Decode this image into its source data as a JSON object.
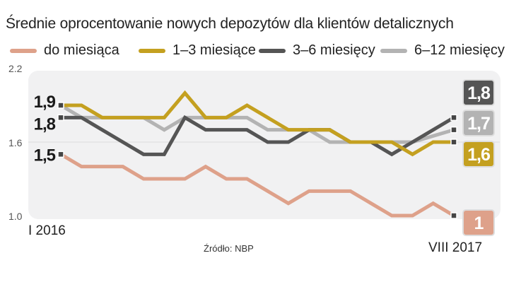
{
  "chart_data": {
    "type": "line",
    "title": "Średnie oprocentowanie nowych depozytów dla klientów detalicznych",
    "source": "Źródło: NBP",
    "x_start_label": "I 2016",
    "x_end_label": "VIII 2017",
    "ylim": [
      1.0,
      2.2
    ],
    "yticks": [
      "2.2",
      "1.6",
      "1.0"
    ],
    "ytick_values": [
      2.2,
      1.6,
      1.0
    ],
    "legend_placement": "top",
    "series": [
      {
        "name": "do miesiąca",
        "color": "#dea18a",
        "start_label": "1,5",
        "end_label": "1",
        "values": [
          1.5,
          1.4,
          1.4,
          1.4,
          1.3,
          1.3,
          1.3,
          1.4,
          1.3,
          1.3,
          1.2,
          1.1,
          1.2,
          1.2,
          1.2,
          1.1,
          1.0,
          1.0,
          1.1,
          1.0
        ]
      },
      {
        "name": "1–3 miesiące",
        "color": "#c4a020",
        "start_label": "1,9",
        "end_label": "1,6",
        "values": [
          1.9,
          1.9,
          1.8,
          1.8,
          1.8,
          1.8,
          2.0,
          1.8,
          1.8,
          1.9,
          1.8,
          1.7,
          1.7,
          1.7,
          1.6,
          1.6,
          1.6,
          1.5,
          1.6,
          1.6
        ]
      },
      {
        "name": "3–6 miesięcy",
        "color": "#555555",
        "start_label": "1,8",
        "end_label": "1,8",
        "values": [
          1.8,
          1.8,
          1.7,
          1.6,
          1.5,
          1.5,
          1.8,
          1.7,
          1.7,
          1.7,
          1.6,
          1.6,
          1.7,
          1.7,
          1.6,
          1.6,
          1.5,
          1.6,
          1.7,
          1.8
        ]
      },
      {
        "name": "6–12 miesięcy",
        "color": "#b3b3b3",
        "start_label": "",
        "end_label": "1,7",
        "values": [
          1.9,
          1.8,
          1.8,
          1.8,
          1.8,
          1.7,
          1.8,
          1.8,
          1.8,
          1.8,
          1.7,
          1.7,
          1.7,
          1.6,
          1.6,
          1.6,
          1.6,
          1.6,
          1.65,
          1.7
        ]
      }
    ]
  }
}
